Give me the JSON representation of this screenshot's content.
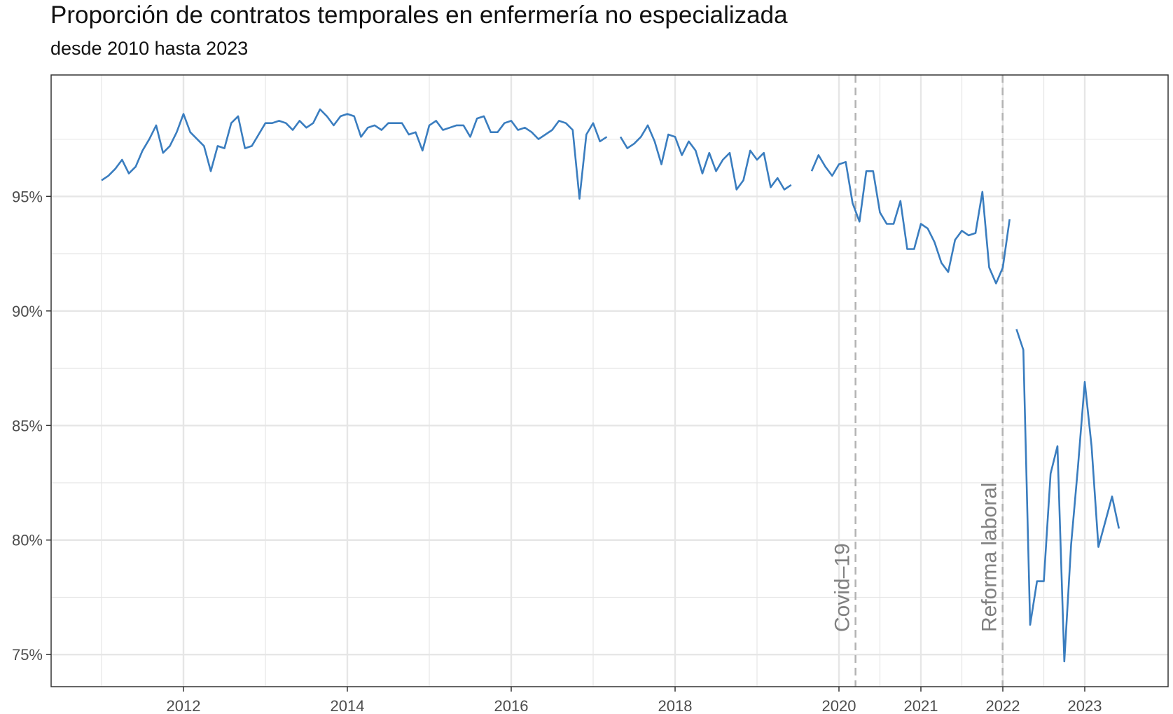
{
  "title": "Proporción de contratos temporales en enfermería no especializada",
  "subtitle": "desde 2010 hasta 2023",
  "colors": {
    "line": "#3a7dbf",
    "grid": "#e6e6e6",
    "vline": "#b3b3b3",
    "annotation": "#808080"
  },
  "chart_data": {
    "type": "line",
    "xlim": [
      "2010-12-01",
      "2023-10-01"
    ],
    "ylim": [
      73.6,
      100.3
    ],
    "grid": true,
    "x_ticks": [
      {
        "date": "2012-01-01",
        "label": "2012"
      },
      {
        "date": "2014-01-01",
        "label": "2014"
      },
      {
        "date": "2016-01-01",
        "label": "2016"
      },
      {
        "date": "2018-01-01",
        "label": "2018"
      },
      {
        "date": "2020-01-01",
        "label": "2020"
      },
      {
        "date": "2021-01-01",
        "label": "2021"
      },
      {
        "date": "2022-01-01",
        "label": "2022"
      },
      {
        "date": "2023-01-01",
        "label": "2023"
      }
    ],
    "y_ticks": [
      {
        "value": 75,
        "label": "75%"
      },
      {
        "value": 80,
        "label": "80%"
      },
      {
        "value": 85,
        "label": "85%"
      },
      {
        "value": 90,
        "label": "90%"
      },
      {
        "value": 95,
        "label": "95%"
      }
    ],
    "annotations": [
      {
        "date": "2020-03-15",
        "label": "Covid–19"
      },
      {
        "date": "2021-12-31",
        "label": "Reforma laboral"
      }
    ],
    "segments": [
      {
        "start": "2011-01",
        "values": [
          95.7,
          95.9,
          96.2,
          96.6,
          96.0,
          96.3,
          97.0,
          97.5,
          98.1,
          96.9,
          97.2,
          97.8,
          98.6,
          97.8,
          97.5,
          97.2,
          96.1,
          97.2,
          97.1,
          98.2,
          98.5,
          97.1,
          97.2,
          97.7,
          98.2,
          98.2,
          98.3,
          98.2,
          97.9,
          98.3,
          98.0,
          98.2,
          98.8,
          98.5,
          98.1,
          98.5,
          98.6,
          98.5,
          97.6,
          98.0,
          98.1,
          97.9,
          98.2,
          98.2,
          98.2,
          97.7,
          97.8,
          97.0,
          98.1,
          98.3,
          97.9,
          98.0,
          98.1,
          98.1,
          97.6,
          98.4,
          98.5,
          97.8,
          97.8,
          98.2,
          98.3,
          97.9,
          98.0,
          97.8,
          97.5,
          97.7,
          97.9,
          98.3,
          98.2,
          97.9,
          94.9,
          97.7,
          98.2,
          97.4,
          97.6
        ]
      },
      {
        "start": "2017-05",
        "values": [
          97.6,
          97.1,
          97.3,
          97.6,
          98.1,
          97.4,
          96.4,
          97.7,
          97.6,
          96.8,
          97.4,
          97.0,
          96.0,
          96.9,
          96.1,
          96.6,
          96.9,
          95.3,
          95.7,
          97.0,
          96.6,
          96.9,
          95.4,
          95.8,
          95.3,
          95.5
        ]
      },
      {
        "start": "2019-09",
        "values": [
          96.1,
          96.8,
          96.3,
          95.9,
          96.4,
          96.5,
          94.7,
          93.9,
          96.1,
          96.1,
          94.3,
          93.8,
          93.8,
          94.8,
          92.7,
          92.7,
          93.8,
          93.6,
          93.0,
          92.1,
          91.7,
          93.1,
          93.5,
          93.3,
          93.4,
          95.2,
          91.9,
          91.2,
          91.9,
          94.0
        ]
      },
      {
        "start": "2022-03",
        "values": [
          89.2,
          88.3,
          76.3,
          78.2,
          78.2,
          82.9,
          84.1,
          74.7,
          79.8,
          83.2,
          86.9,
          84.1,
          79.7,
          80.8,
          81.9,
          80.5
        ]
      }
    ]
  }
}
